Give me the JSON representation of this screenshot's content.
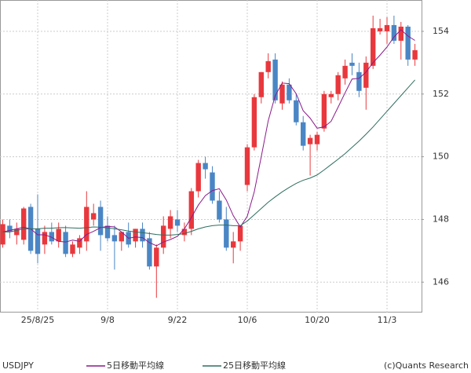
{
  "chart_data": {
    "type": "candlestick",
    "name": "USDJPY",
    "source": "(c)Quants Research",
    "up_color": "#e8383d",
    "down_color": "#4a86c5",
    "categories": [
      null,
      null,
      null,
      null,
      null,
      "25/8/25",
      null,
      null,
      null,
      null,
      null,
      null,
      null,
      null,
      null,
      "9/8",
      null,
      null,
      null,
      null,
      null,
      null,
      null,
      null,
      null,
      "9/22",
      null,
      null,
      null,
      null,
      null,
      null,
      null,
      null,
      null,
      "10/6",
      null,
      null,
      null,
      null,
      null,
      null,
      null,
      null,
      null,
      "10/20",
      null,
      null,
      null,
      null,
      null,
      null,
      null,
      null,
      null,
      "11/3",
      null,
      null,
      null,
      null
    ],
    "open": [
      147.2,
      147.8,
      147.5,
      147.35,
      148.4,
      147.7,
      147.2,
      147.6,
      147.3,
      147.6,
      146.9,
      147.1,
      147.3,
      148.0,
      148.4,
      147.8,
      147.5,
      147.3,
      147.6,
      147.3,
      147.7,
      147.4,
      146.5,
      147.1,
      147.7,
      148.0,
      147.5,
      147.7,
      148.9,
      149.8,
      149.5,
      148.6,
      148.0,
      147.1,
      147.3,
      149.1,
      150.3,
      151.9,
      152.7,
      153.1,
      151.7,
      152.3,
      151.8,
      151.1,
      150.4,
      150.4,
      150.9,
      151.9,
      152.0,
      152.5,
      153.0,
      152.7,
      152.2,
      152.9,
      154.0,
      154.0,
      154.2,
      153.7,
      154.15,
      153.1
    ],
    "high": [
      148.0,
      148.0,
      147.9,
      148.4,
      148.5,
      148.8,
      147.8,
      147.9,
      147.9,
      147.8,
      147.3,
      147.5,
      148.9,
      148.5,
      148.6,
      148.1,
      147.8,
      147.6,
      147.9,
      147.7,
      147.9,
      147.6,
      147.2,
      148.1,
      148.3,
      148.3,
      147.9,
      149.0,
      149.9,
      150.0,
      149.7,
      148.9,
      148.4,
      147.6,
      147.8,
      150.4,
      152.0,
      152.7,
      153.3,
      153.3,
      152.4,
      152.5,
      152.0,
      151.3,
      150.7,
      150.8,
      152.1,
      152.1,
      152.7,
      153.1,
      153.3,
      153.0,
      153.2,
      154.5,
      154.4,
      154.45,
      154.5,
      154.3,
      154.2,
      153.6
    ],
    "low": [
      147.1,
      147.4,
      147.2,
      147.2,
      146.9,
      146.6,
      146.9,
      147.2,
      147.1,
      146.8,
      146.8,
      146.9,
      147.0,
      147.8,
      147.0,
      147.3,
      146.4,
      147.0,
      147.1,
      147.1,
      147.1,
      146.4,
      145.5,
      146.9,
      147.4,
      147.6,
      147.3,
      147.5,
      148.7,
      149.3,
      148.5,
      147.9,
      147.0,
      146.6,
      147.0,
      148.9,
      150.2,
      151.7,
      152.5,
      151.7,
      151.5,
      151.7,
      151.0,
      150.2,
      149.4,
      150.2,
      150.8,
      151.7,
      151.8,
      152.3,
      152.6,
      151.9,
      151.5,
      152.8,
      153.9,
      153.6,
      153.6,
      153.1,
      152.9,
      152.9
    ],
    "close": [
      147.85,
      147.6,
      147.7,
      148.35,
      147.0,
      146.9,
      147.6,
      147.3,
      147.7,
      146.9,
      147.2,
      147.4,
      148.4,
      148.2,
      147.5,
      147.4,
      147.3,
      147.6,
      147.2,
      147.7,
      147.3,
      146.5,
      147.1,
      147.8,
      148.1,
      147.8,
      147.7,
      148.9,
      149.8,
      149.6,
      148.6,
      148.0,
      147.1,
      147.3,
      147.8,
      150.3,
      151.9,
      152.7,
      153.05,
      151.8,
      152.3,
      151.8,
      151.1,
      150.35,
      150.6,
      150.7,
      152.0,
      152.0,
      152.6,
      152.9,
      152.9,
      152.1,
      153.0,
      154.1,
      154.1,
      154.2,
      153.7,
      154.15,
      153.1,
      153.4
    ],
    "series": [
      {
        "name": "5日移動平均線",
        "color": "#8b1a8b",
        "values": [
          147.6,
          147.65,
          147.7,
          147.75,
          147.7,
          147.51,
          147.51,
          147.43,
          147.3,
          147.28,
          147.34,
          147.3,
          147.52,
          147.62,
          147.74,
          147.78,
          147.76,
          147.6,
          147.4,
          147.44,
          147.42,
          147.26,
          147.16,
          147.28,
          147.36,
          147.46,
          147.7,
          148.06,
          148.46,
          148.76,
          148.92,
          148.98,
          148.62,
          148.12,
          147.76,
          148.1,
          148.88,
          150.0,
          151.15,
          151.95,
          152.35,
          152.33,
          152.01,
          151.47,
          151.23,
          150.91,
          150.95,
          151.13,
          151.58,
          152.04,
          152.48,
          152.5,
          152.7,
          153.0,
          153.24,
          153.5,
          153.82,
          154.05,
          153.85,
          153.71
        ]
      },
      {
        "name": "25日移動平均線",
        "color": "#2e6e5e",
        "values": [
          147.6,
          147.6,
          147.65,
          147.7,
          147.7,
          147.7,
          147.72,
          147.72,
          147.74,
          147.74,
          147.73,
          147.72,
          147.74,
          147.76,
          147.75,
          147.73,
          147.7,
          147.67,
          147.63,
          147.6,
          147.58,
          147.55,
          147.52,
          147.5,
          147.5,
          147.52,
          147.55,
          147.62,
          147.7,
          147.76,
          147.8,
          147.82,
          147.82,
          147.8,
          147.8,
          147.95,
          148.15,
          148.35,
          148.55,
          148.72,
          148.88,
          149.02,
          149.15,
          149.25,
          149.32,
          149.42,
          149.58,
          149.75,
          149.92,
          150.1,
          150.3,
          150.5,
          150.72,
          150.95,
          151.2,
          151.45,
          151.7,
          151.95,
          152.2,
          152.45
        ]
      }
    ],
    "ylim": [
      145.03,
      155
    ],
    "yticks": [
      146,
      148,
      150,
      152,
      154
    ],
    "grid": true
  }
}
